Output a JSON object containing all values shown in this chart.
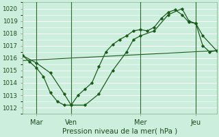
{
  "xlabel": "Pression niveau de la mer( hPa )",
  "background_color": "#cceedd",
  "grid_color": "#b0ddc8",
  "line_color": "#1a5c1a",
  "xlim": [
    0,
    14
  ],
  "ylim": [
    1011.5,
    1020.5
  ],
  "yticks": [
    1012,
    1013,
    1014,
    1015,
    1016,
    1017,
    1018,
    1019,
    1020
  ],
  "day_labels": [
    "Mar",
    "Ven",
    "Mer",
    "Jeu"
  ],
  "day_positions": [
    1.0,
    3.5,
    8.5,
    12.5
  ],
  "vline_positions": [
    1.0,
    3.5,
    8.5,
    12.5
  ],
  "line_wavy": {
    "x": [
      0.0,
      0.5,
      1.0,
      1.5,
      2.0,
      2.5,
      3.0,
      3.5,
      4.0,
      4.5,
      5.0,
      5.5,
      6.0,
      6.5,
      7.0,
      7.5,
      8.0,
      8.5,
      9.0,
      9.5,
      10.0,
      10.5,
      11.0,
      11.5,
      12.0,
      12.5,
      13.0,
      13.5,
      14.0
    ],
    "y": [
      1016.2,
      1015.7,
      1015.2,
      1014.5,
      1013.2,
      1012.5,
      1012.2,
      1012.2,
      1013.0,
      1013.5,
      1014.0,
      1015.3,
      1016.5,
      1017.1,
      1017.5,
      1017.8,
      1018.2,
      1018.3,
      1018.2,
      1018.5,
      1019.2,
      1019.7,
      1019.9,
      1019.5,
      1018.9,
      1018.8,
      1017.0,
      1016.5,
      1016.6
    ]
  },
  "line_smooth": {
    "x": [
      0.0,
      1.0,
      2.0,
      3.0,
      3.5,
      4.5,
      5.5,
      6.5,
      7.5,
      8.0,
      8.5,
      9.5,
      10.5,
      11.5,
      12.0,
      12.5,
      13.0,
      14.0
    ],
    "y": [
      1016.2,
      1015.6,
      1014.8,
      1013.1,
      1012.2,
      1012.2,
      1013.1,
      1015.0,
      1016.5,
      1017.5,
      1017.8,
      1018.2,
      1019.5,
      1020.0,
      1019.0,
      1018.8,
      1017.8,
      1016.6
    ]
  },
  "line_diag": {
    "x": [
      0.0,
      14.0
    ],
    "y": [
      1015.8,
      1016.6
    ]
  }
}
